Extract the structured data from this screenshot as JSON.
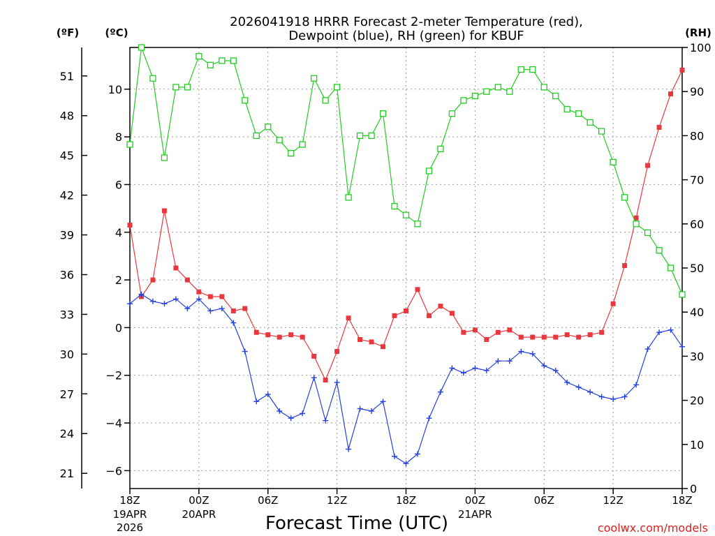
{
  "chart_data": {
    "type": "line",
    "title_line1": "2026041918 HRRR Forecast 2-meter Temperature (red),",
    "title_line2": "Dewpoint (blue), RH (green) for KBUF",
    "units": {
      "fahrenheit": "(ºF)",
      "celsius": "(ºC)",
      "rh": "(RH)"
    },
    "xlabel": "Forecast Time (UTC)",
    "credit": "coolwx.com/models",
    "x_range": [
      0,
      48
    ],
    "y_celsius_range": [
      -6.75,
      11.75
    ],
    "y_rh_range": [
      0,
      100
    ],
    "celsius_ticks": [
      10,
      8,
      6,
      4,
      2,
      0,
      -2,
      -4,
      -6
    ],
    "celsius_tick_labels": [
      "10",
      "8",
      "6",
      "4",
      "2",
      "0",
      "−2",
      "−4",
      "−6"
    ],
    "fahrenheit_ticks": [
      51,
      48,
      45,
      42,
      39,
      36,
      33,
      30,
      27,
      24,
      21
    ],
    "rh_ticks": [
      100,
      90,
      80,
      70,
      60,
      50,
      40,
      30,
      20,
      10,
      0
    ],
    "x_ticks": [
      {
        "x": 0,
        "line1": "18Z",
        "line2": "19APR",
        "line3": "2026"
      },
      {
        "x": 6,
        "line1": "00Z",
        "line2": "20APR",
        "line3": ""
      },
      {
        "x": 12,
        "line1": "06Z",
        "line2": "",
        "line3": ""
      },
      {
        "x": 18,
        "line1": "12Z",
        "line2": "",
        "line3": ""
      },
      {
        "x": 24,
        "line1": "18Z",
        "line2": "",
        "line3": ""
      },
      {
        "x": 30,
        "line1": "00Z",
        "line2": "21APR",
        "line3": ""
      },
      {
        "x": 36,
        "line1": "06Z",
        "line2": "",
        "line3": ""
      },
      {
        "x": 42,
        "line1": "12Z",
        "line2": "",
        "line3": ""
      },
      {
        "x": 48,
        "line1": "18Z",
        "line2": "",
        "line3": ""
      }
    ],
    "series": [
      {
        "name": "Temperature",
        "axis": "celsius",
        "color": "#e8383d",
        "marker": "square-filled",
        "values": [
          4.3,
          1.3,
          2.0,
          4.9,
          2.5,
          2.0,
          1.5,
          1.3,
          1.3,
          0.7,
          0.8,
          -0.2,
          -0.3,
          -0.4,
          -0.3,
          -0.4,
          -1.2,
          -2.2,
          -1.0,
          0.4,
          -0.5,
          -0.6,
          -0.8,
          0.5,
          0.7,
          1.6,
          0.5,
          0.9,
          0.6,
          -0.2,
          -0.1,
          -0.5,
          -0.2,
          -0.1,
          -0.4,
          -0.4,
          -0.4,
          -0.4,
          -0.3,
          -0.4,
          -0.3,
          -0.2,
          1.0,
          2.6,
          4.6,
          6.8,
          8.4,
          9.8,
          10.8
        ]
      },
      {
        "name": "Dewpoint",
        "axis": "celsius",
        "color": "#2440e0",
        "marker": "plus",
        "values": [
          1.0,
          1.4,
          1.1,
          1.0,
          1.2,
          0.8,
          1.2,
          0.7,
          0.8,
          0.2,
          -1.0,
          -3.1,
          -2.8,
          -3.5,
          -3.8,
          -3.6,
          -2.1,
          -3.9,
          -2.3,
          -5.1,
          -3.4,
          -3.5,
          -3.1,
          -5.4,
          -5.7,
          -5.3,
          -3.8,
          -2.7,
          -1.7,
          -1.9,
          -1.7,
          -1.8,
          -1.4,
          -1.4,
          -1.0,
          -1.1,
          -1.6,
          -1.8,
          -2.3,
          -2.5,
          -2.7,
          -2.9,
          -3.0,
          -2.9,
          -2.4,
          -0.9,
          -0.2,
          -0.1,
          -0.8
        ]
      },
      {
        "name": "RH",
        "axis": "rh",
        "color": "#22cc22",
        "marker": "square-open",
        "values": [
          78,
          100,
          93,
          75,
          91,
          91,
          98,
          96,
          97,
          97,
          88,
          80,
          82,
          79,
          76,
          78,
          93,
          88,
          91,
          66,
          80,
          80,
          85,
          64,
          62,
          60,
          72,
          77,
          85,
          88,
          89,
          90,
          91,
          90,
          95,
          95,
          91,
          89,
          86,
          85,
          83,
          81,
          74,
          66,
          60,
          58,
          54,
          50,
          44
        ]
      }
    ]
  }
}
